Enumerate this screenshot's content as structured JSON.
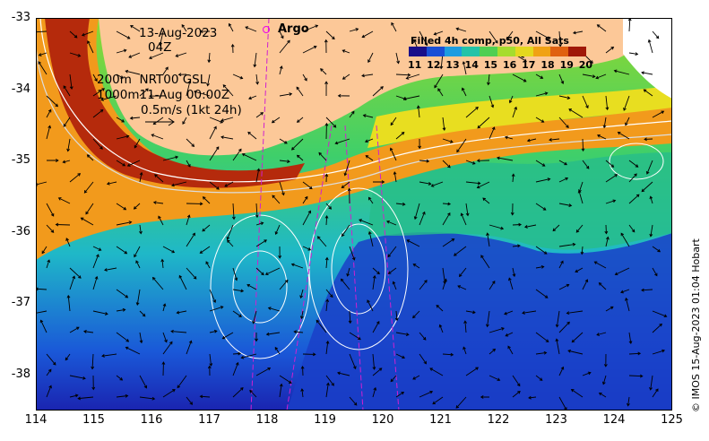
{
  "map": {
    "date": "13-Aug-2023",
    "time": "04Z",
    "depth_line_1": "200m  NRT00 GSL",
    "depth_line_2": "1000m11-Aug 00:00Z",
    "scale_label": "0.5m/s (1kt 24h)",
    "argo_label": "Argo",
    "credit": "© IMOS 15-Aug-2023 01:04 Hobart",
    "colors": {
      "land": "#fcc898",
      "argo": "#ee00ee",
      "background": "#ffffff"
    }
  },
  "colorbar": {
    "title": "Filled 4h comp, p50, All Sats",
    "labels": [
      "11",
      "12",
      "13",
      "14",
      "15",
      "16",
      "17",
      "18",
      "19",
      "20"
    ],
    "colors": [
      "#1a0f8a",
      "#1a4fd6",
      "#1d9ce0",
      "#23c3a8",
      "#4fcf52",
      "#a6dc2e",
      "#e4d81e",
      "#f0a214",
      "#e06010",
      "#a01808"
    ]
  },
  "axes": {
    "x_ticks": [
      "114",
      "115",
      "116",
      "117",
      "118",
      "119",
      "120",
      "121",
      "122",
      "123",
      "124",
      "125"
    ],
    "y_ticks": [
      "-33",
      "-34",
      "-35",
      "-36",
      "-37",
      "-38"
    ]
  }
}
